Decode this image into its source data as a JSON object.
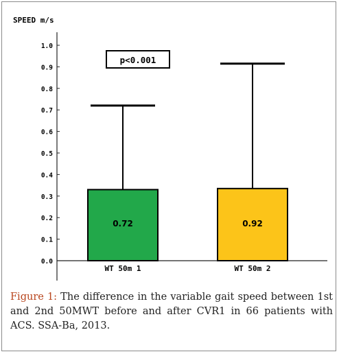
{
  "chart_data": {
    "type": "bar",
    "ylabel": "SPEED m/s",
    "xlabel": "",
    "ylim": [
      0,
      1.0
    ],
    "yticks": [
      0.0,
      0.1,
      0.2,
      0.3,
      0.4,
      0.5,
      0.6,
      0.7,
      0.8,
      0.9,
      1.0
    ],
    "ytick_labels": [
      "0.0",
      "0.1",
      "0.2",
      "0.3",
      "0.4",
      "0.5",
      "0.6",
      "0.7",
      "0.8",
      "0.9",
      "1.0"
    ],
    "categories": [
      "WT 50m 1",
      "WT 50m 2"
    ],
    "values": [
      0.33,
      0.335
    ],
    "error_upper": [
      0.72,
      0.915
    ],
    "data_labels": [
      "0.72",
      "0.92"
    ],
    "colors": [
      "#22a84a",
      "#fcc419"
    ],
    "annotation": "p<0.001",
    "grid": false
  },
  "caption": {
    "lead": "Figure 1:",
    "text": " The difference in the variable gait speed between 1st and 2nd 50MWT before and after CVR1 in 66 patients with ACS. SSA-Ba, 2013."
  }
}
